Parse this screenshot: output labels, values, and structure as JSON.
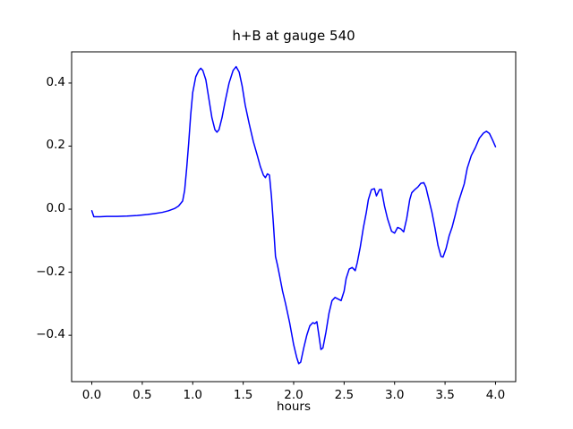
{
  "chart_data": {
    "type": "line",
    "title": "h+B at gauge 540",
    "xlabel": "hours",
    "ylabel": "",
    "legend": null,
    "grid": false,
    "line_color": "#0000ff",
    "line_width": 1.5,
    "xlim": [
      -0.2,
      4.2
    ],
    "ylim": [
      -0.547,
      0.499
    ],
    "xticks": [
      0.0,
      0.5,
      1.0,
      1.5,
      2.0,
      2.5,
      3.0,
      3.5,
      4.0
    ],
    "xtick_labels": [
      "0.0",
      "0.5",
      "1.0",
      "1.5",
      "2.0",
      "2.5",
      "3.0",
      "3.5",
      "4.0"
    ],
    "yticks": [
      -0.4,
      -0.2,
      0.0,
      0.2,
      0.4
    ],
    "ytick_labels": [
      "−0.4",
      "−0.2",
      "0.0",
      "0.2",
      "0.4"
    ],
    "series": [
      {
        "name": "h+B",
        "x": [
          0.0,
          0.02,
          0.08,
          0.15,
          0.25,
          0.35,
          0.45,
          0.55,
          0.62,
          0.7,
          0.76,
          0.82,
          0.86,
          0.9,
          0.92,
          0.94,
          0.96,
          0.98,
          1.0,
          1.03,
          1.06,
          1.08,
          1.1,
          1.13,
          1.16,
          1.19,
          1.22,
          1.24,
          1.26,
          1.29,
          1.32,
          1.36,
          1.4,
          1.43,
          1.46,
          1.49,
          1.52,
          1.56,
          1.6,
          1.64,
          1.67,
          1.7,
          1.72,
          1.74,
          1.76,
          1.78,
          1.8,
          1.82,
          1.84,
          1.86,
          1.89,
          1.92,
          1.96,
          2.0,
          2.03,
          2.05,
          2.07,
          2.1,
          2.13,
          2.16,
          2.19,
          2.21,
          2.23,
          2.25,
          2.27,
          2.29,
          2.32,
          2.35,
          2.38,
          2.41,
          2.44,
          2.47,
          2.5,
          2.52,
          2.55,
          2.58,
          2.61,
          2.63,
          2.66,
          2.69,
          2.72,
          2.74,
          2.77,
          2.8,
          2.82,
          2.85,
          2.87,
          2.9,
          2.93,
          2.97,
          3.0,
          3.03,
          3.06,
          3.09,
          3.12,
          3.15,
          3.17,
          3.2,
          3.23,
          3.26,
          3.29,
          3.31,
          3.34,
          3.37,
          3.4,
          3.43,
          3.46,
          3.48,
          3.51,
          3.54,
          3.57,
          3.6,
          3.63,
          3.66,
          3.69,
          3.72,
          3.76,
          3.8,
          3.84,
          3.88,
          3.91,
          3.94,
          3.97,
          4.0
        ],
        "y": [
          -0.005,
          -0.024,
          -0.024,
          -0.023,
          -0.023,
          -0.022,
          -0.02,
          -0.017,
          -0.014,
          -0.01,
          -0.005,
          0.002,
          0.01,
          0.026,
          0.06,
          0.13,
          0.21,
          0.3,
          0.37,
          0.42,
          0.44,
          0.447,
          0.44,
          0.41,
          0.35,
          0.29,
          0.252,
          0.244,
          0.252,
          0.29,
          0.34,
          0.4,
          0.44,
          0.452,
          0.435,
          0.39,
          0.33,
          0.27,
          0.215,
          0.17,
          0.135,
          0.108,
          0.1,
          0.112,
          0.108,
          0.04,
          -0.05,
          -0.15,
          -0.178,
          -0.21,
          -0.26,
          -0.3,
          -0.36,
          -0.43,
          -0.47,
          -0.49,
          -0.485,
          -0.44,
          -0.4,
          -0.37,
          -0.36,
          -0.363,
          -0.357,
          -0.4,
          -0.445,
          -0.44,
          -0.39,
          -0.33,
          -0.29,
          -0.28,
          -0.285,
          -0.29,
          -0.26,
          -0.22,
          -0.19,
          -0.185,
          -0.195,
          -0.17,
          -0.12,
          -0.06,
          -0.01,
          0.03,
          0.062,
          0.065,
          0.042,
          0.062,
          0.062,
          0.01,
          -0.03,
          -0.07,
          -0.076,
          -0.058,
          -0.062,
          -0.072,
          -0.03,
          0.03,
          0.052,
          0.062,
          0.07,
          0.082,
          0.084,
          0.07,
          0.03,
          -0.01,
          -0.06,
          -0.115,
          -0.15,
          -0.152,
          -0.125,
          -0.085,
          -0.057,
          -0.02,
          0.02,
          0.05,
          0.08,
          0.13,
          0.17,
          0.195,
          0.225,
          0.241,
          0.247,
          0.24,
          0.22,
          0.198
        ]
      }
    ]
  }
}
